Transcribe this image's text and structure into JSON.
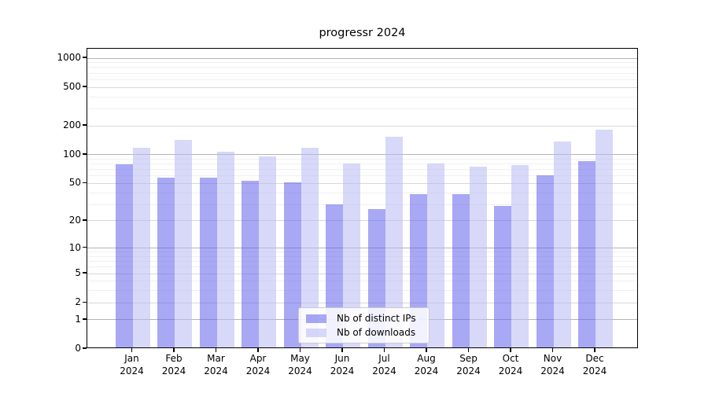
{
  "chart_data": {
    "type": "bar",
    "title": "progressr 2024",
    "categories": [
      "Jan 2024",
      "Feb 2024",
      "Mar 2024",
      "Apr 2024",
      "May 2024",
      "Jun 2024",
      "Jul 2024",
      "Aug 2024",
      "Sep 2024",
      "Oct 2024",
      "Nov 2024",
      "Dec 2024"
    ],
    "series": [
      {
        "name": "Nb of distinct IPs",
        "color": "rgba(97,97,237,0.55)",
        "values": [
          76,
          55,
          55,
          51,
          50,
          29,
          26,
          37,
          37,
          28,
          59,
          82
        ]
      },
      {
        "name": "Nb of downloads",
        "color": "rgba(184,184,244,0.55)",
        "values": [
          115,
          137,
          104,
          93,
          113,
          78,
          149,
          78,
          72,
          75,
          133,
          175
        ]
      }
    ],
    "xlabel": "",
    "ylabel": "",
    "yscale": "log1p",
    "ylim": [
      0,
      1250
    ],
    "grid": true,
    "legend_position": "lower center"
  },
  "axes": {
    "y_tick_values": [
      0,
      1,
      2,
      5,
      10,
      20,
      50,
      100,
      200,
      500,
      1000
    ],
    "y_tick_labels": [
      "0",
      "1",
      "2",
      "5",
      "10",
      "20",
      "50",
      "100",
      "200",
      "500",
      "1000"
    ],
    "y_minor_values": [
      3,
      4,
      6,
      7,
      8,
      9,
      30,
      40,
      60,
      70,
      80,
      90,
      300,
      400,
      600,
      700,
      800,
      900
    ],
    "x_months": [
      "Jan",
      "Feb",
      "Mar",
      "Apr",
      "May",
      "Jun",
      "Jul",
      "Aug",
      "Sep",
      "Oct",
      "Nov",
      "Dec"
    ],
    "x_year": "2024"
  },
  "style_colors": {
    "axis": "#000000",
    "grid_power10": "#b4b4b4",
    "grid_major": "#d8d8d8",
    "grid_minor": "#f0f0f0",
    "background": "#ffffff"
  }
}
